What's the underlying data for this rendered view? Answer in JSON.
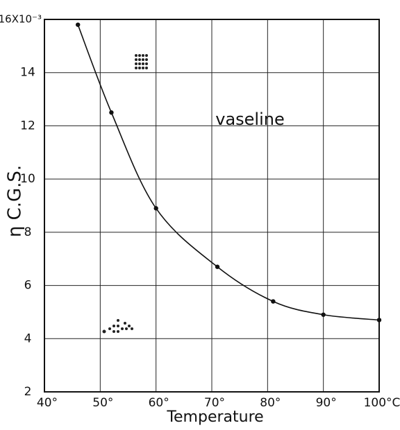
{
  "chart_data": {
    "type": "line",
    "xlabel": "Temperature",
    "ylabel": "η C.G.S.",
    "annotation": "vaseline",
    "x": [
      46,
      52,
      60,
      71,
      81,
      90,
      100
    ],
    "series": [
      {
        "color": "#111111",
        "values": [
          15.8,
          12.5,
          8.9,
          6.7,
          5.4,
          4.9,
          4.7
        ]
      }
    ],
    "xlim": [
      40,
      100
    ],
    "xticks": [
      {
        "value": 40,
        "label": "40°"
      },
      {
        "value": 50,
        "label": "50°"
      },
      {
        "value": 60,
        "label": "60°"
      },
      {
        "value": 70,
        "label": "70°"
      },
      {
        "value": 80,
        "label": "80°"
      },
      {
        "value": 90,
        "label": "90°"
      },
      {
        "value": 100,
        "label": "100°C"
      }
    ],
    "ylim": [
      2,
      16
    ],
    "yticks": [
      2,
      4,
      6,
      8,
      10,
      12,
      14,
      {
        "value": 16,
        "label": "16X10⁻³"
      }
    ],
    "grid": true
  }
}
